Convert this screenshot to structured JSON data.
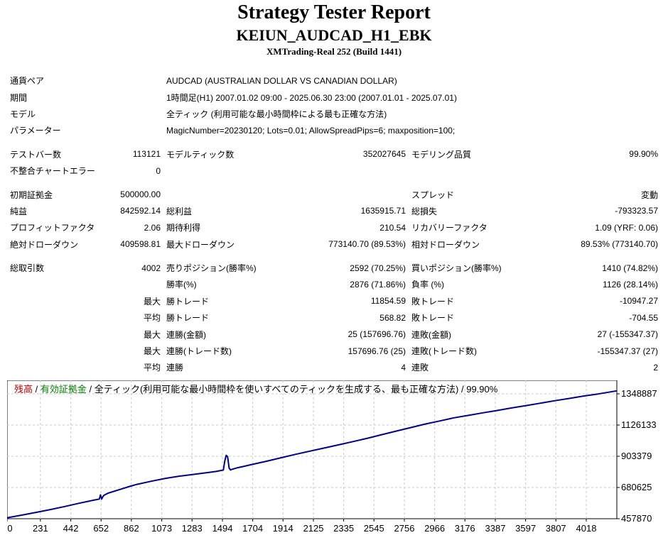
{
  "header": {
    "title": "Strategy Tester Report",
    "subtitle": "KEIUN_AUDCAD_H1_EBK",
    "build": "XMTrading-Real 252 (Build 1441)"
  },
  "settings": [
    {
      "label": "通貨ペア",
      "value": "AUDCAD (AUSTRALIAN DOLLAR VS CANADIAN DOLLAR)"
    },
    {
      "label": "期間",
      "value": "1時間足(H1) 2007.01.02 09:00 - 2025.06.30 23:00 (2007.01.01 - 2025.07.01)"
    },
    {
      "label": "モデル",
      "value": "全ティック (利用可能な最小時間枠による最も正確な方法)"
    },
    {
      "label": "パラメーター",
      "value": "MagicNumber=20230120; Lots=0.01; AllowSpreadPips=6; maxposition=100;"
    }
  ],
  "bars_block": {
    "bars_label": "テストバー数",
    "bars_value": "113121",
    "ticks_label": "モデルティック数",
    "ticks_value": "352027645",
    "quality_label": "モデリング品質",
    "quality_value": "99.90%",
    "mismatch_label": "不整合チャートエラー",
    "mismatch_value": "0"
  },
  "results": {
    "deposit_label": "初期証拠金",
    "deposit_value": "500000.00",
    "spread_label": "スプレッド",
    "spread_value": "変動",
    "netprofit_label": "純益",
    "netprofit_value": "842592.14",
    "grossprofit_label": "総利益",
    "grossprofit_value": "1635915.71",
    "grossloss_label": "総損失",
    "grossloss_value": "-793323.57",
    "pf_label": "プロフィットファクタ",
    "pf_value": "2.06",
    "expected_label": "期待利得",
    "expected_value": "210.54",
    "recovery_label": "リカバリーファクタ",
    "recovery_value": "1.09 (YRF: 0.06)",
    "absdd_label": "絶対ドローダウン",
    "absdd_value": "409598.81",
    "maxdd_label": "最大ドローダウン",
    "maxdd_value": "773140.70 (89.53%)",
    "reldd_label": "相対ドローダウン",
    "reldd_value": "89.53% (773140.70)"
  },
  "trades": {
    "total_label": "総取引数",
    "total_value": "4002",
    "short_label": "売りポジション(勝率%)",
    "short_value": "2592 (70.25%)",
    "long_label": "買いポジション(勝率%)",
    "long_value": "1410 (74.82%)",
    "win_label": "勝率(%)",
    "win_value": "2876 (71.86%)",
    "loss_label": "負率 (%)",
    "loss_value": "1126 (28.14%)",
    "max_label": "最大",
    "avg_label": "平均",
    "largest_win_label": "勝トレード",
    "largest_win_value": "11854.59",
    "largest_loss_label": "敗トレード",
    "largest_loss_value": "-10947.27",
    "avg_win_label": "勝トレード",
    "avg_win_value": "568.82",
    "avg_loss_label": "敗トレード",
    "avg_loss_value": "-704.55",
    "max_consec_wins_money_label": "連勝(金額)",
    "max_consec_wins_money_value": "25 (157696.76)",
    "max_consec_losses_money_label": "連敗(金額)",
    "max_consec_losses_money_value": "27 (-155347.37)",
    "max_consec_wins_count_label": "連勝(トレード数)",
    "max_consec_wins_count_value": "157696.76 (25)",
    "max_consec_losses_count_label": "連敗(トレード数)",
    "max_consec_losses_count_value": "-155347.37 (27)",
    "avg_consec_wins_label": "連勝",
    "avg_consec_wins_value": "4",
    "avg_consec_losses_label": "連敗",
    "avg_consec_losses_value": "2"
  },
  "chart_data": {
    "type": "line",
    "legend": {
      "balance": "残高",
      "sep1": " / ",
      "equity": "有効証拠金",
      "sep2": " / ",
      "rest": "全ティック(利用可能な最小時間枠を使いすべてのティックを生成する、最も正確な方法) / 99.90%"
    },
    "colors": {
      "line": "#00008b",
      "balance_label": "#c00000",
      "equity_label": "#008000",
      "grid": "#c8c8c8"
    },
    "x_ticks": [
      0,
      231,
      442,
      652,
      862,
      1073,
      1283,
      1494,
      1704,
      1914,
      2125,
      2335,
      2545,
      2756,
      2966,
      3176,
      3387,
      3597,
      3807,
      4018
    ],
    "y_ticks": [
      457870,
      680625,
      903379,
      1126133,
      1348887
    ],
    "xlim": [
      0,
      4230
    ],
    "ylim": [
      457870,
      1348887
    ],
    "grid": true,
    "series": [
      {
        "x": [
          0,
          100,
          200,
          300,
          400,
          500,
          600,
          640,
          648,
          656,
          664,
          672,
          700,
          800,
          850,
          900,
          1000,
          1100,
          1200,
          1300,
          1400,
          1450,
          1500,
          1510,
          1520,
          1530,
          1540,
          1550,
          1560,
          1600,
          1650,
          1700,
          1800,
          1900,
          2000,
          2100,
          2200,
          2300,
          2400,
          2500,
          2600,
          2700,
          2800,
          2900,
          3000,
          3100,
          3200,
          3300,
          3400,
          3500,
          3600,
          3700,
          3800,
          3900,
          4000,
          4100,
          4200,
          4230
        ],
        "y": [
          465000,
          483000,
          503000,
          523000,
          545000,
          568000,
          590000,
          598000,
          628000,
          598000,
          615000,
          625000,
          640000,
          672000,
          688000,
          703000,
          725000,
          746000,
          762000,
          775000,
          788000,
          795000,
          805000,
          870000,
          910000,
          900000,
          820000,
          805000,
          810000,
          822000,
          833000,
          845000,
          868000,
          893000,
          917000,
          940000,
          962000,
          985000,
          1008000,
          1032000,
          1058000,
          1083000,
          1108000,
          1133000,
          1155000,
          1178000,
          1195000,
          1213000,
          1230000,
          1248000,
          1265000,
          1282000,
          1300000,
          1316000,
          1333000,
          1348000,
          1365000,
          1370000
        ]
      }
    ]
  }
}
